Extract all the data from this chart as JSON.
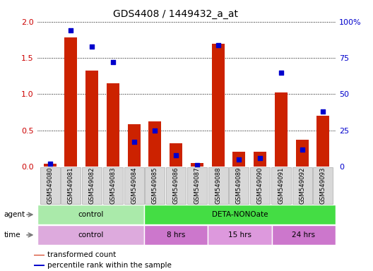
{
  "title": "GDS4408 / 1449432_a_at",
  "samples": [
    "GSM549080",
    "GSM549081",
    "GSM549082",
    "GSM549083",
    "GSM549084",
    "GSM549085",
    "GSM549086",
    "GSM549087",
    "GSM549088",
    "GSM549089",
    "GSM549090",
    "GSM549091",
    "GSM549092",
    "GSM549093"
  ],
  "red_values": [
    0.04,
    1.78,
    1.33,
    1.15,
    0.59,
    0.62,
    0.32,
    0.05,
    1.7,
    0.21,
    0.21,
    1.02,
    0.37,
    0.7
  ],
  "blue_percentile": [
    2,
    94,
    83,
    72,
    17,
    25,
    8,
    1,
    84,
    5,
    6,
    65,
    12,
    38
  ],
  "ylim_left": [
    0,
    2
  ],
  "ylim_right": [
    0,
    100
  ],
  "yticks_left": [
    0,
    0.5,
    1.0,
    1.5,
    2.0
  ],
  "yticks_right": [
    0,
    25,
    50,
    75,
    100
  ],
  "ylabel_left_color": "#cc0000",
  "ylabel_right_color": "#0000cc",
  "agent_groups": [
    {
      "label": "control",
      "start": 0,
      "end": 5,
      "color": "#aaeaaa"
    },
    {
      "label": "DETA-NONOate",
      "start": 5,
      "end": 14,
      "color": "#44dd44"
    }
  ],
  "time_groups": [
    {
      "label": "control",
      "start": 0,
      "end": 5,
      "color": "#ddaadd"
    },
    {
      "label": "8 hrs",
      "start": 5,
      "end": 8,
      "color": "#cc77cc"
    },
    {
      "label": "15 hrs",
      "start": 8,
      "end": 11,
      "color": "#dd99dd"
    },
    {
      "label": "24 hrs",
      "start": 11,
      "end": 14,
      "color": "#cc77cc"
    }
  ],
  "bar_color": "#cc2200",
  "dot_color": "#0000cc",
  "legend_items": [
    {
      "color": "#cc2200",
      "label": "transformed count"
    },
    {
      "color": "#0000cc",
      "label": "percentile rank within the sample"
    }
  ],
  "agent_label": "agent",
  "time_label": "time"
}
